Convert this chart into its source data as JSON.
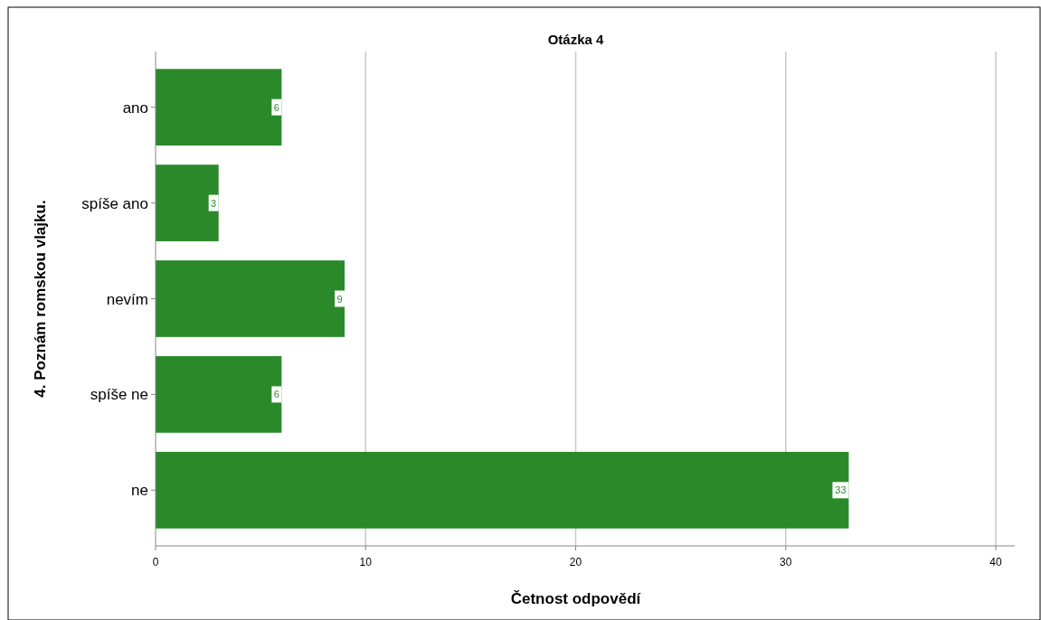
{
  "chart_data": {
    "type": "bar",
    "orientation": "horizontal",
    "title": "Otázka 4",
    "xlabel": "Četnost odpovědí",
    "ylabel": "4. Poznám romskou vlajku.",
    "categories": [
      "ano",
      "spíše ano",
      "nevím",
      "spíše ne",
      "ne"
    ],
    "values": [
      6,
      3,
      9,
      6,
      33
    ],
    "color": "#2a8a2a",
    "xlim": [
      0,
      40.9
    ],
    "xticks": [
      0,
      10,
      20,
      30,
      40
    ],
    "grid": "x",
    "data_labels": true
  }
}
